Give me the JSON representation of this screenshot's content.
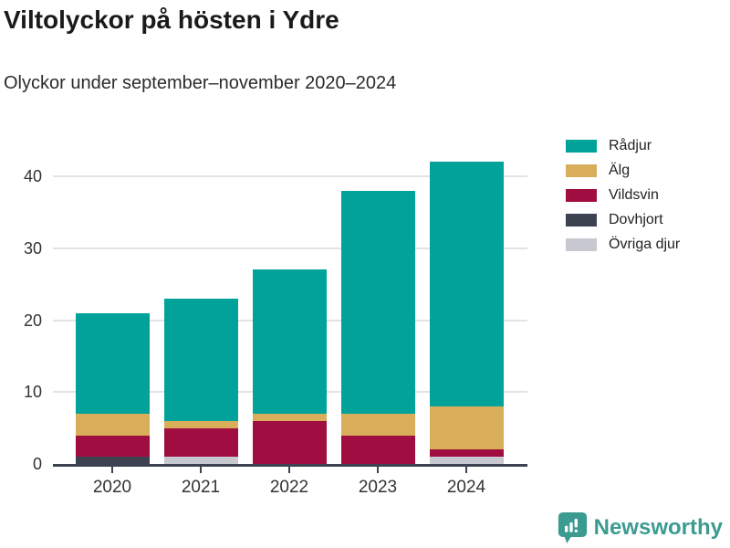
{
  "header": {
    "title": "Viltolyckor på hösten i Ydre",
    "subtitle": "Olyckor under september–november 2020–2024"
  },
  "chart_data": {
    "type": "bar",
    "stacked": true,
    "title": "Viltolyckor på hösten i Ydre",
    "subtitle": "Olyckor under september–november 2020–2024",
    "categories": [
      "2020",
      "2021",
      "2022",
      "2023",
      "2024"
    ],
    "series": [
      {
        "name": "Rådjur",
        "color": "#00a29a",
        "values": [
          14,
          17,
          20,
          31,
          34
        ]
      },
      {
        "name": "Älg",
        "color": "#d9ae5b",
        "values": [
          3,
          1,
          1,
          3,
          6
        ]
      },
      {
        "name": "Vildsvin",
        "color": "#a00d40",
        "values": [
          3,
          4,
          6,
          4,
          1
        ]
      },
      {
        "name": "Dovhjort",
        "color": "#3d4251",
        "values": [
          1,
          0,
          0,
          0,
          0
        ]
      },
      {
        "name": "Övriga djur",
        "color": "#c7c8d0",
        "values": [
          0,
          1,
          0,
          0,
          1
        ]
      }
    ],
    "stack_order_bottom_to_top": [
      "Övriga djur",
      "Dovhjort",
      "Vildsvin",
      "Älg",
      "Rådjur"
    ],
    "totals": [
      21,
      23,
      27,
      38,
      42
    ],
    "xlabel": "",
    "ylabel": "",
    "y_ticks": [
      0,
      10,
      20,
      30,
      40
    ],
    "ylim": [
      0,
      45.5
    ],
    "grid": "horizontal",
    "legend_position": "right",
    "colors": {
      "gridline": "#e3e3e3",
      "axis": "#3d4251",
      "tick_text": "#333333"
    }
  },
  "footer": {
    "brand": "Newsworthy",
    "brand_color": "#3c9b91"
  }
}
